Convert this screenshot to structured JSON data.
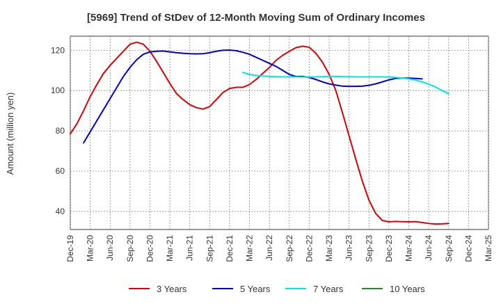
{
  "chart_data": {
    "type": "line",
    "title": "[5969]  Trend of StDev of 12-Month Moving Sum of Ordinary Incomes",
    "xlabel": "",
    "ylabel": "Amount (million yen)",
    "ylim": [
      31,
      127
    ],
    "yticks": [
      40,
      60,
      80,
      100,
      120
    ],
    "x_ticks": [
      "Dec-19",
      "Mar-20",
      "Jun-20",
      "Sep-20",
      "Dec-20",
      "Mar-21",
      "Jun-21",
      "Sep-21",
      "Dec-21",
      "Mar-22",
      "Jun-22",
      "Sep-22",
      "Dec-22",
      "Mar-23",
      "Jun-23",
      "Sep-23",
      "Dec-23",
      "Mar-24",
      "Jun-24",
      "Sep-24",
      "Dec-24",
      "Mar-25"
    ],
    "grid": true,
    "legend_position": "bottom",
    "series": [
      {
        "name": "3 Years",
        "color": "#dd0000",
        "start": "Dec-19",
        "values": [
          78.5,
          83.5,
          90,
          97,
          103,
          108.5,
          112.5,
          116,
          119.5,
          123,
          124,
          123,
          119.5,
          114.5,
          109,
          103.5,
          98.5,
          95.5,
          93,
          91.5,
          90.8,
          92,
          95.5,
          99,
          101,
          101.6,
          101.6,
          103,
          105.5,
          108.5,
          111.5,
          115,
          117.5,
          119.5,
          121.3,
          122,
          121.5,
          118.5,
          114,
          108,
          100,
          89,
          77.5,
          66,
          55,
          45.5,
          39,
          35.5,
          34.8,
          35,
          34.9,
          34.8,
          34.9,
          34.5,
          34,
          33.7,
          33.8,
          34
        ]
      },
      {
        "name": "5 Years",
        "color": "#0000cc",
        "start": "Feb-20",
        "values": [
          74,
          79.5,
          85,
          90.5,
          96,
          101.5,
          107,
          111.5,
          115.3,
          118,
          119.2,
          119.5,
          119.6,
          119.2,
          118.8,
          118.5,
          118.3,
          118.2,
          118.3,
          118.8,
          119.5,
          120,
          120.1,
          119.8,
          119,
          118,
          116.5,
          115,
          113.5,
          112,
          110,
          108,
          107,
          107,
          106.5,
          105.5,
          104.3,
          103.3,
          102.7,
          102.2,
          102.1,
          102.1,
          102.2,
          102.6,
          103.3,
          104.3,
          105.3,
          106,
          106.2,
          106.2,
          106,
          105.8
        ]
      },
      {
        "name": "7 Years",
        "color": "#00e5e5",
        "start": "Feb-22",
        "values": [
          109,
          108,
          107.5,
          107.2,
          107,
          106.9,
          106.8,
          106.8,
          106.8,
          106.7,
          106.7,
          106.8,
          106.9,
          107,
          107,
          106.9,
          106.9,
          106.8,
          106.8,
          106.8,
          106.8,
          106.8,
          106.7,
          106.5,
          106.2,
          105.8,
          105.2,
          104.3,
          103.2,
          101.8,
          100,
          98.4
        ]
      },
      {
        "name": "10 Years",
        "color": "#228b22",
        "start": "Dec-19",
        "values": []
      }
    ]
  }
}
